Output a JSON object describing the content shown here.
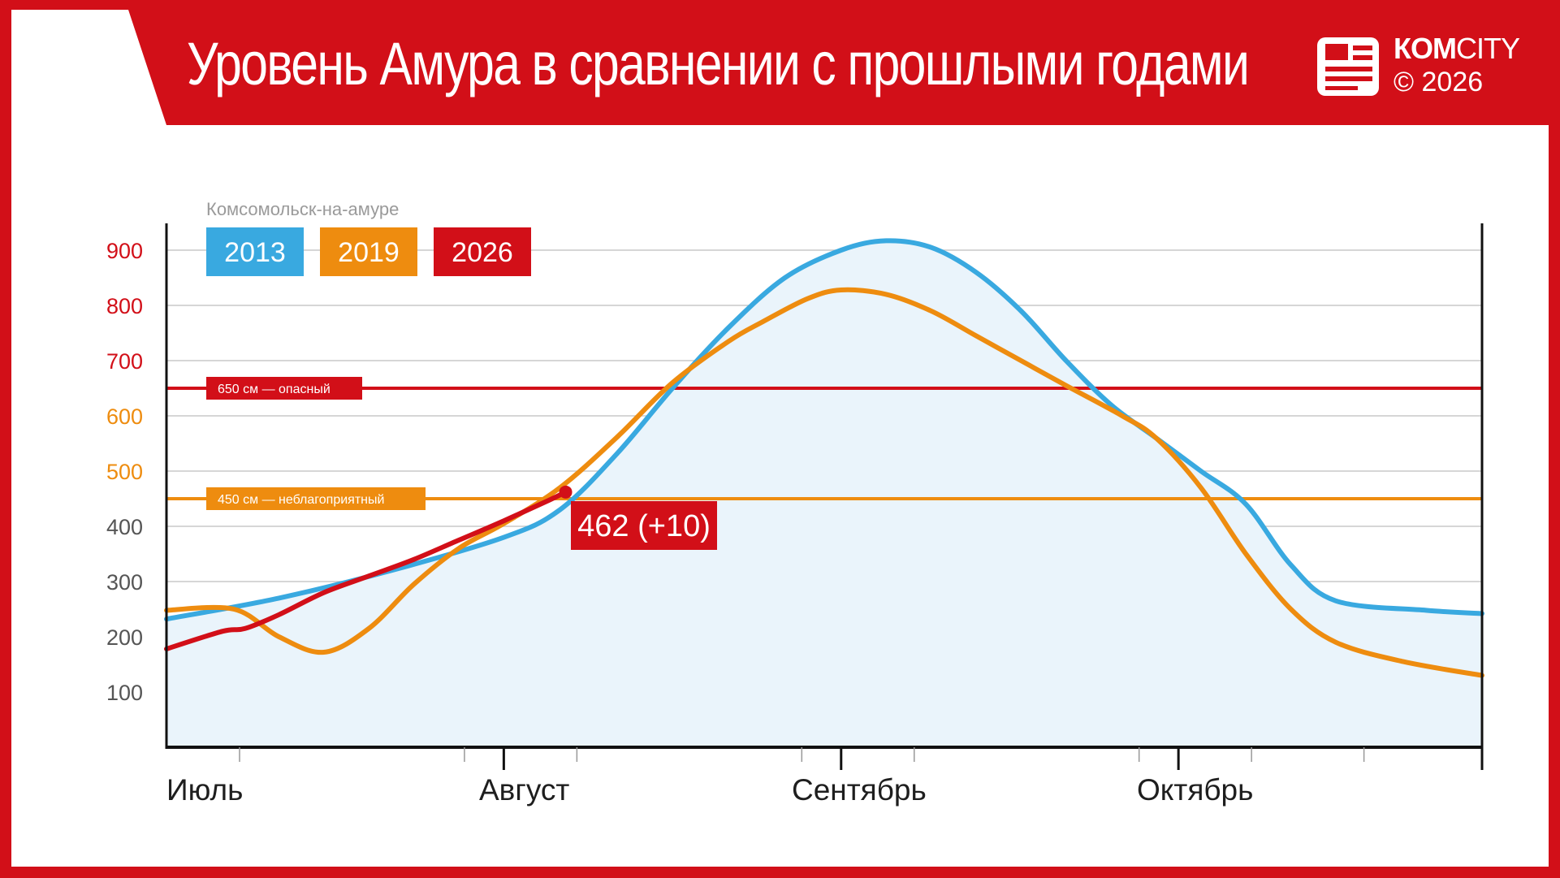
{
  "header": {
    "title": "Уровень Амура в сравнении с прошлыми годами",
    "brand_bold": "КОМ",
    "brand_light": "CITY",
    "copyright": "© 2026",
    "bg_color": "#d20f18",
    "logo_icon": "newspaper-logo-icon"
  },
  "chart_data": {
    "type": "line",
    "subtitle": "Комсомольск-на-амуре",
    "ylim": [
      0,
      950
    ],
    "y_ticks": [
      100,
      200,
      300,
      400,
      500,
      600,
      700,
      800,
      900
    ],
    "y_tick_colors": [
      "#555555",
      "#555555",
      "#555555",
      "#555555",
      "#ee8c0f",
      "#ee8c0f",
      "#d20f18",
      "#d20f18",
      "#d20f18"
    ],
    "xlim": [
      0,
      117
    ],
    "months": [
      {
        "label": "Июль",
        "start": 0
      },
      {
        "label": "Август",
        "start": 30
      },
      {
        "label": "Сентябрь",
        "start": 60
      },
      {
        "label": "Октябрь",
        "start": 90
      }
    ],
    "grid": true,
    "legend_placement": "top-left",
    "series": [
      {
        "name": "2013",
        "color": "#39a9e0",
        "fill": true,
        "points": [
          [
            0,
            232
          ],
          [
            10,
            270
          ],
          [
            20,
            320
          ],
          [
            30,
            380
          ],
          [
            35,
            430
          ],
          [
            40,
            530
          ],
          [
            45,
            650
          ],
          [
            50,
            760
          ],
          [
            55,
            850
          ],
          [
            60,
            900
          ],
          [
            64,
            917
          ],
          [
            68,
            905
          ],
          [
            72,
            860
          ],
          [
            76,
            790
          ],
          [
            80,
            700
          ],
          [
            84,
            620
          ],
          [
            88,
            560
          ],
          [
            92,
            500
          ],
          [
            96,
            440
          ],
          [
            100,
            330
          ],
          [
            104,
            265
          ],
          [
            112,
            248
          ],
          [
            117,
            242
          ]
        ]
      },
      {
        "name": "2019",
        "color": "#ee8c0f",
        "fill": false,
        "points": [
          [
            0,
            248
          ],
          [
            6,
            250
          ],
          [
            10,
            200
          ],
          [
            14,
            172
          ],
          [
            18,
            215
          ],
          [
            22,
            295
          ],
          [
            26,
            360
          ],
          [
            30,
            405
          ],
          [
            35,
            470
          ],
          [
            40,
            560
          ],
          [
            45,
            660
          ],
          [
            50,
            735
          ],
          [
            53,
            770
          ],
          [
            57,
            812
          ],
          [
            60,
            828
          ],
          [
            64,
            820
          ],
          [
            68,
            790
          ],
          [
            72,
            745
          ],
          [
            76,
            700
          ],
          [
            80,
            655
          ],
          [
            85,
            600
          ],
          [
            88,
            560
          ],
          [
            92,
            470
          ],
          [
            96,
            350
          ],
          [
            100,
            250
          ],
          [
            104,
            190
          ],
          [
            110,
            155
          ],
          [
            117,
            130
          ]
        ]
      },
      {
        "name": "2026",
        "color": "#d20f18",
        "fill": false,
        "points": [
          [
            0,
            178
          ],
          [
            5,
            210
          ],
          [
            7,
            215
          ],
          [
            10,
            240
          ],
          [
            14,
            280
          ],
          [
            18,
            310
          ],
          [
            22,
            340
          ],
          [
            26,
            375
          ],
          [
            30,
            410
          ],
          [
            34,
            447
          ],
          [
            35.5,
            462
          ]
        ]
      }
    ],
    "thresholds": [
      {
        "value": 650,
        "label": "650 см — опасный",
        "color": "#d20f18"
      },
      {
        "value": 450,
        "label": "450 см — неблагоприятный",
        "color": "#ee8c0f"
      }
    ],
    "current": {
      "label": "462 (+10)",
      "x": 35.5,
      "value": 462,
      "color": "#d20f18"
    }
  }
}
